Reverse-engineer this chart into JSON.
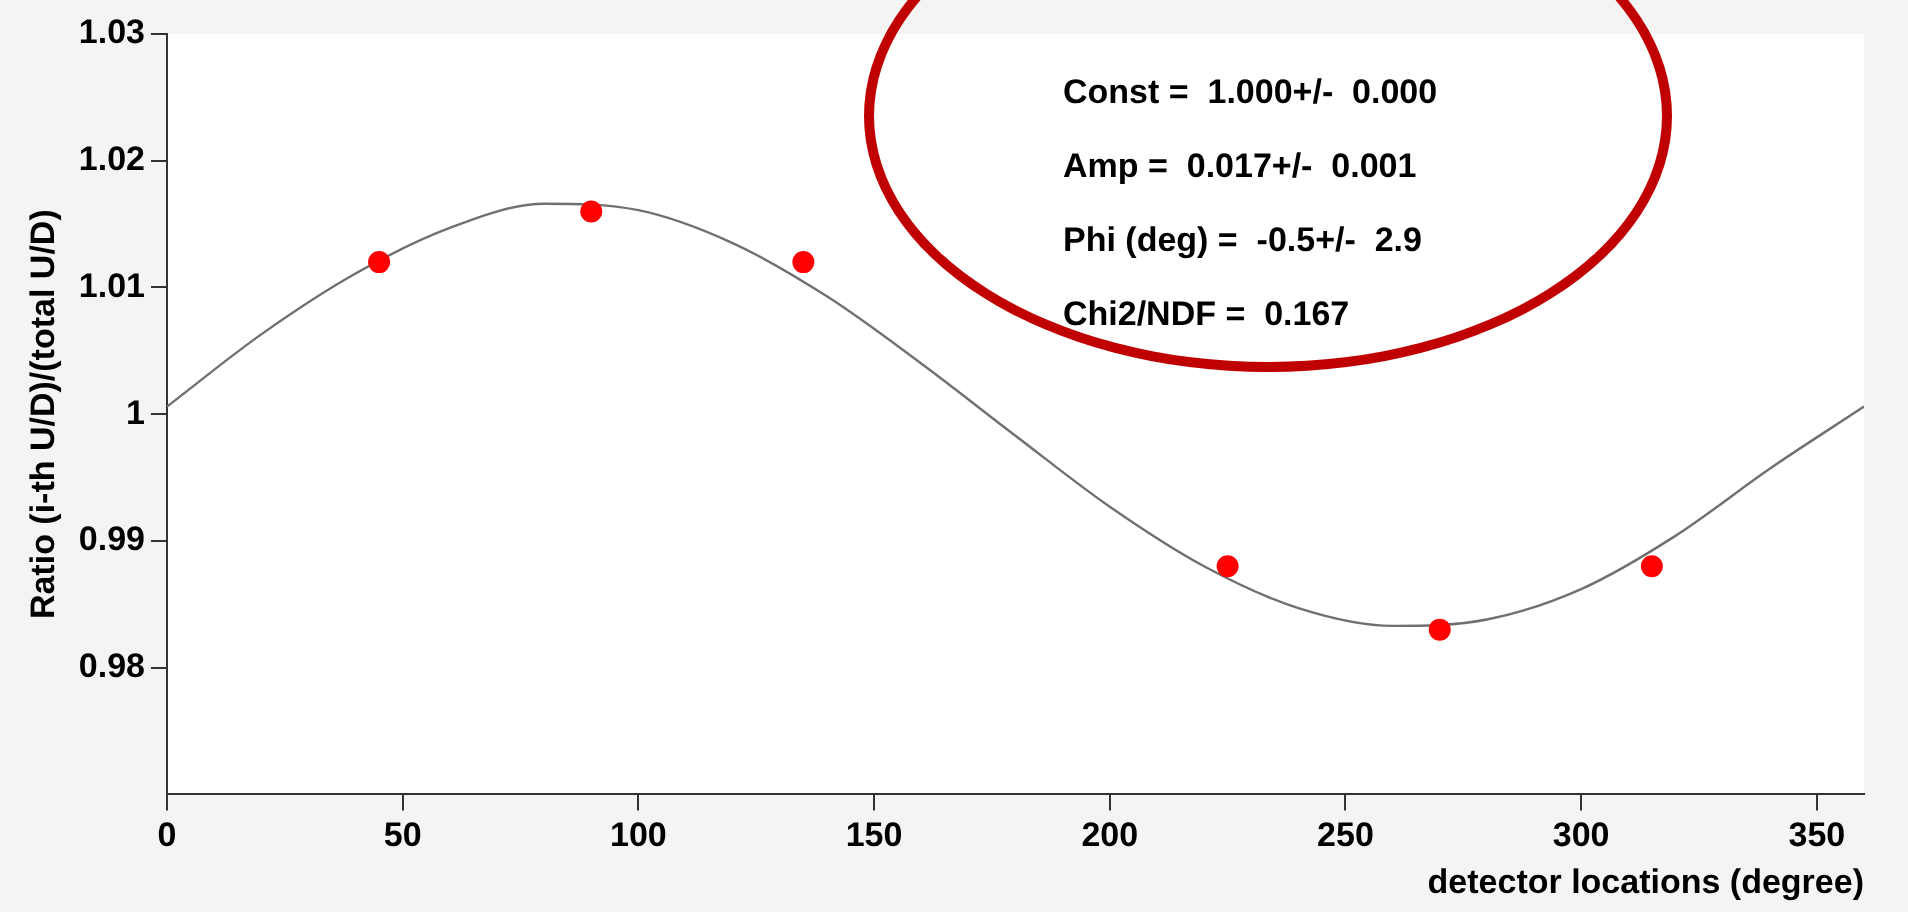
{
  "chart_data": {
    "type": "scatter",
    "xlabel": "detector locations (degree)",
    "ylabel": "Ratio (i-th U/D)/(total U/D)",
    "xlim": [
      0,
      360
    ],
    "xticks": [
      0,
      50,
      100,
      150,
      200,
      250,
      300,
      350
    ],
    "ylim": [
      0.97,
      1.03
    ],
    "yticks": [
      0.98,
      0.99,
      1,
      1.01,
      1.02,
      1.03
    ],
    "grid": false,
    "legend": false,
    "marker": "circle",
    "series": [
      {
        "type": "scatter",
        "color": "#ff0000",
        "x": [
          45,
          90,
          135,
          225,
          270,
          315
        ],
        "values": [
          1.012,
          1.016,
          1.012,
          0.988,
          0.983,
          0.988
        ]
      },
      {
        "type": "line",
        "color": "#707070",
        "marker": "none",
        "x": [
          0,
          20,
          40,
          60,
          80,
          100,
          120,
          140,
          160,
          180,
          200,
          220,
          240,
          260,
          280,
          300,
          320,
          340,
          360
        ],
        "values": [
          1.0006,
          1.0063,
          1.0111,
          1.0147,
          1.0166,
          1.0161,
          1.0135,
          1.0093,
          1.004,
          0.9983,
          0.9927,
          0.988,
          0.9847,
          0.9833,
          0.9838,
          0.9862,
          0.9904,
          0.9957,
          1.0006
        ]
      }
    ],
    "annotations": [
      "Const =  1.000+/-  0.000",
      "Amp =  0.017+/-  0.001",
      "Phi (deg) =  -0.5+/-  2.9",
      "Chi2/NDF =  0.167"
    ]
  }
}
